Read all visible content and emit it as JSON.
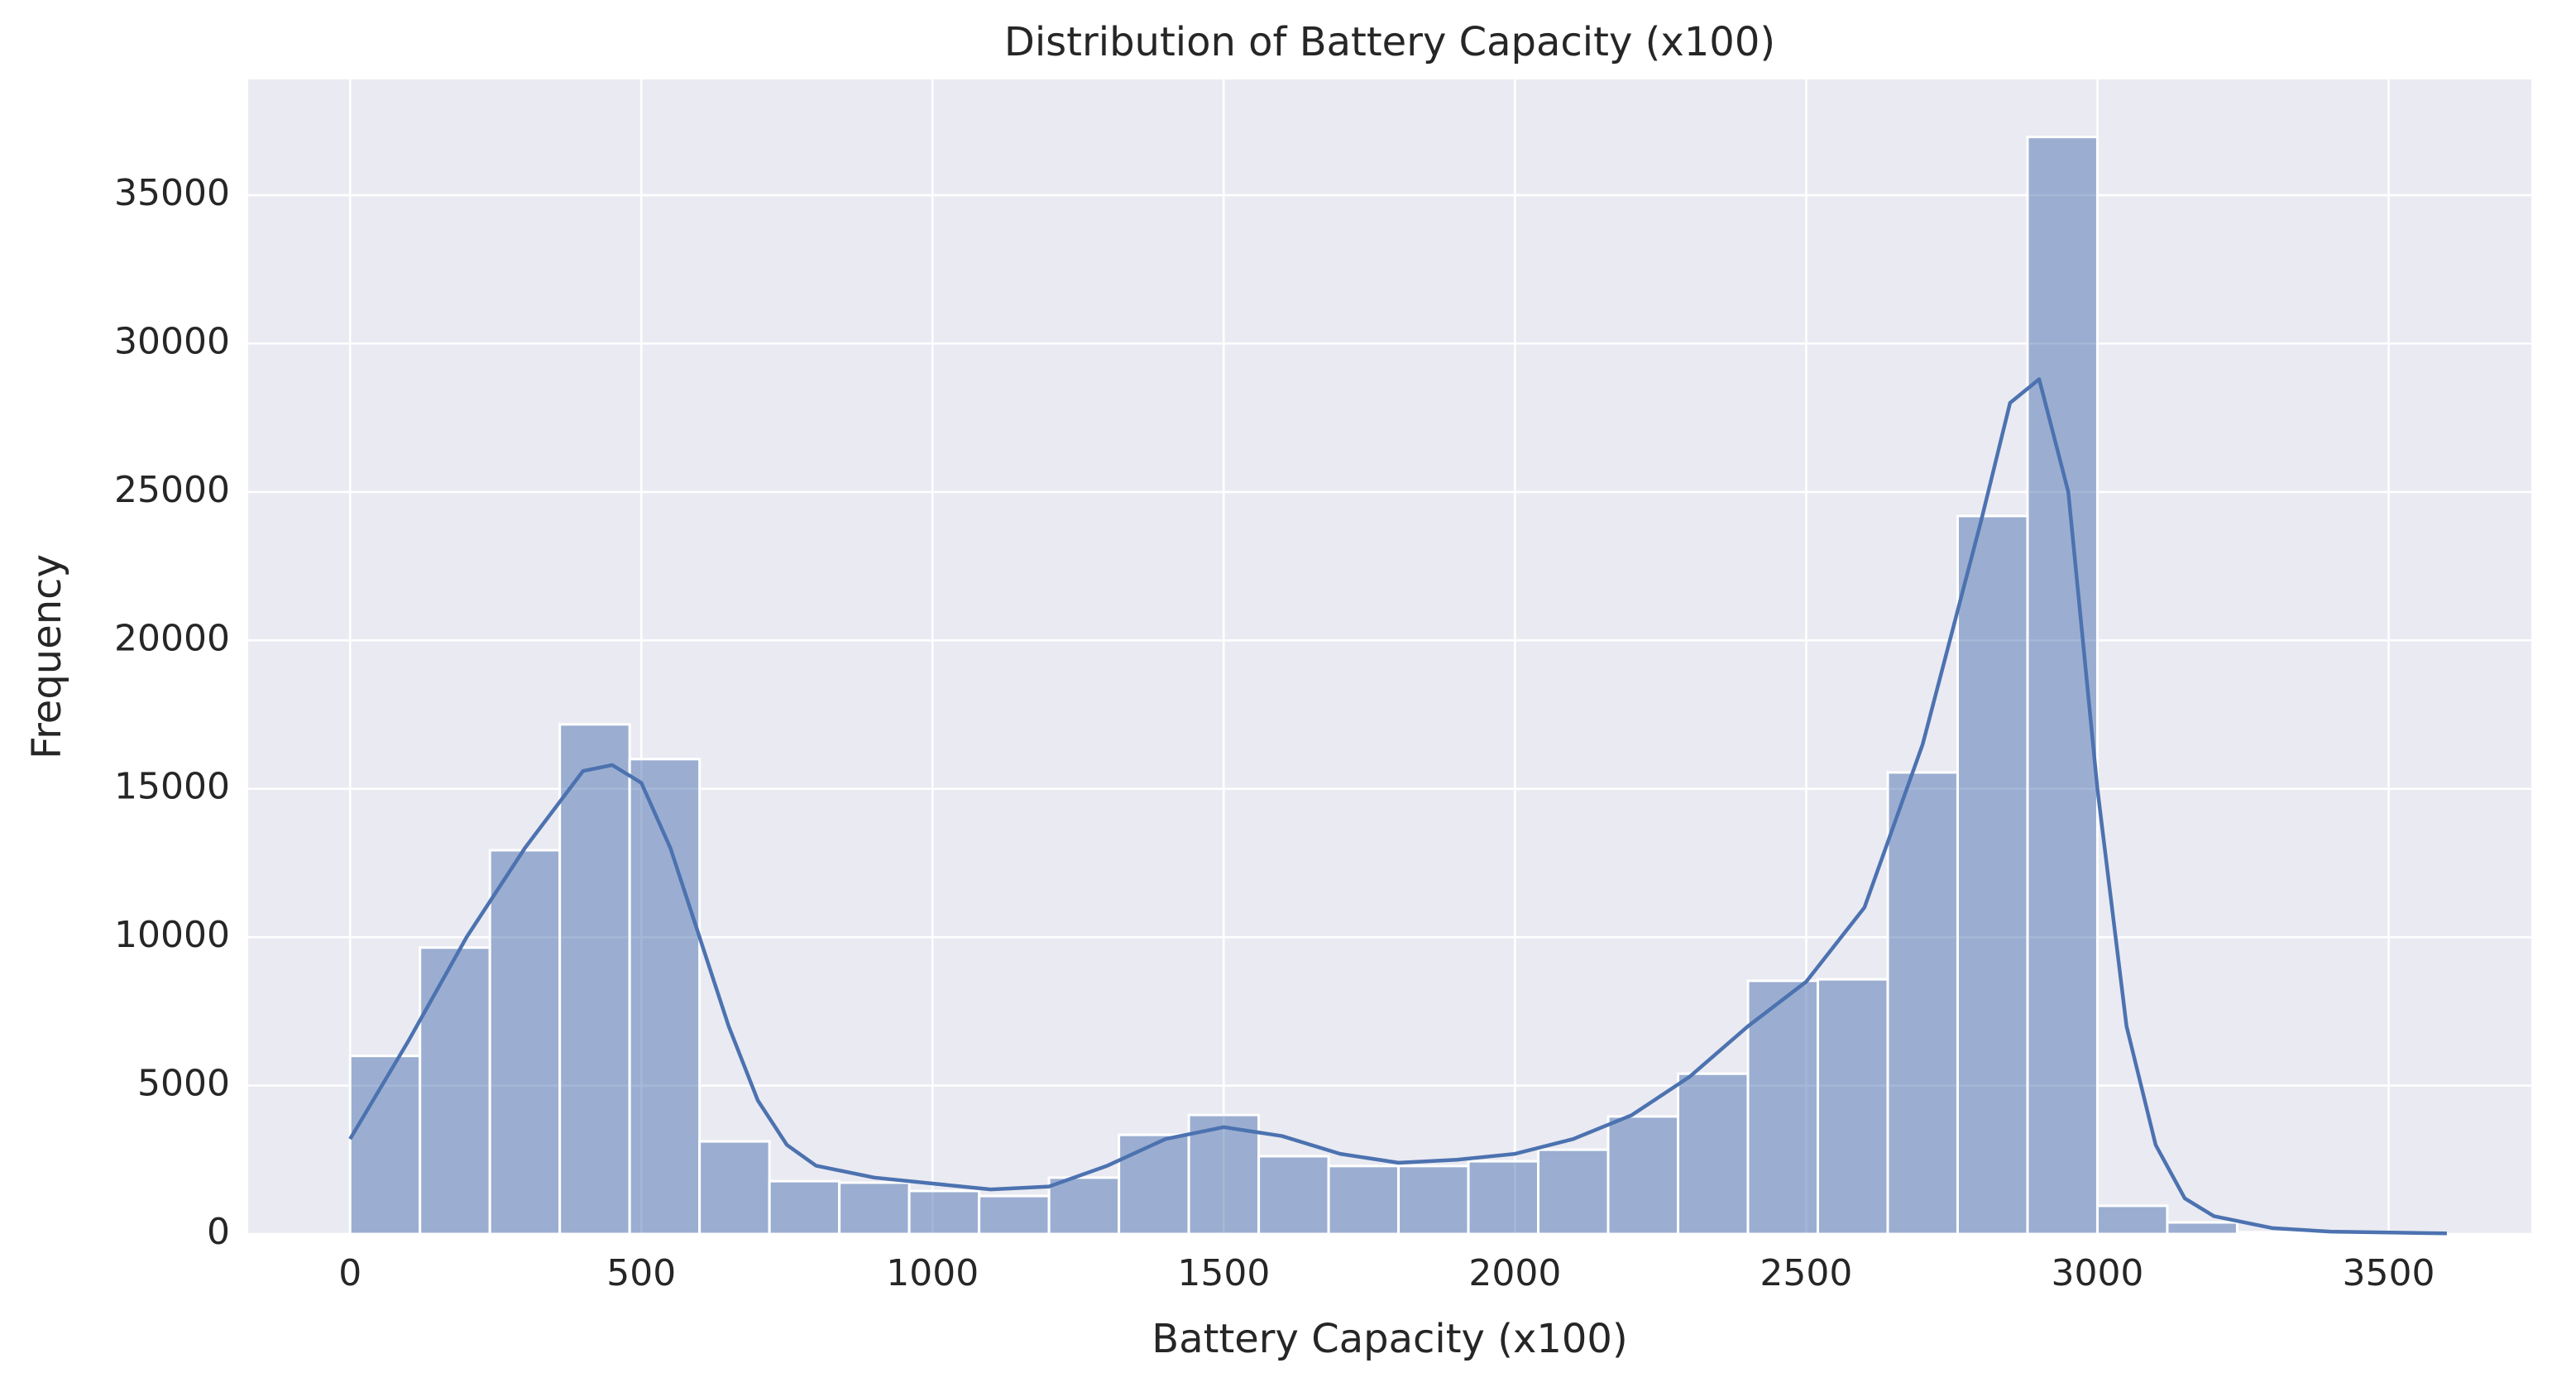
{
  "chart_data": {
    "type": "histogram",
    "title": "Distribution of Battery Capacity (x100)",
    "x_label": "Battery Capacity (x100)",
    "y_label": "Frequency",
    "bins": [
      0,
      120,
      240,
      360,
      480,
      600,
      720,
      840,
      960,
      1080,
      1200,
      1320,
      1440,
      1560,
      1680,
      1800,
      1920,
      2040,
      2160,
      2280,
      2400,
      2520,
      2640,
      2760,
      2880,
      3000,
      3120,
      3240,
      3360,
      3480,
      3600
    ],
    "values": [
      6000,
      9650,
      12930,
      17170,
      16000,
      3120,
      1780,
      1730,
      1450,
      1280,
      1900,
      3340,
      4010,
      2620,
      2290,
      2290,
      2450,
      2840,
      3960,
      5400,
      8530,
      8580,
      15550,
      24190,
      36960,
      950,
      390,
      60,
      40,
      30
    ],
    "color": "#4c72b0",
    "kde": {
      "x": [
        0,
        100,
        200,
        300,
        400,
        450,
        500,
        550,
        600,
        650,
        700,
        750,
        800,
        900,
        1000,
        1100,
        1200,
        1300,
        1400,
        1500,
        1600,
        1700,
        1800,
        1900,
        2000,
        2100,
        2200,
        2300,
        2400,
        2500,
        2600,
        2700,
        2800,
        2850,
        2900,
        2950,
        3000,
        3050,
        3100,
        3150,
        3200,
        3300,
        3400,
        3600
      ],
      "values": [
        3200,
        6500,
        10000,
        13000,
        15600,
        15800,
        15200,
        13000,
        10000,
        7000,
        4500,
        3000,
        2300,
        1900,
        1700,
        1500,
        1600,
        2300,
        3200,
        3600,
        3300,
        2700,
        2400,
        2500,
        2700,
        3200,
        4000,
        5300,
        7000,
        8500,
        11000,
        16500,
        24000,
        28000,
        28800,
        25000,
        15000,
        7000,
        3000,
        1200,
        600,
        200,
        80,
        20
      ]
    },
    "xlim": [
      -175,
      3745
    ],
    "ylim": [
      0,
      38900
    ],
    "xticks": [
      0,
      500,
      1000,
      1500,
      2000,
      2500,
      3000,
      3500
    ],
    "yticks": [
      0,
      5000,
      10000,
      15000,
      20000,
      25000,
      30000,
      35000
    ],
    "grid": true
  }
}
